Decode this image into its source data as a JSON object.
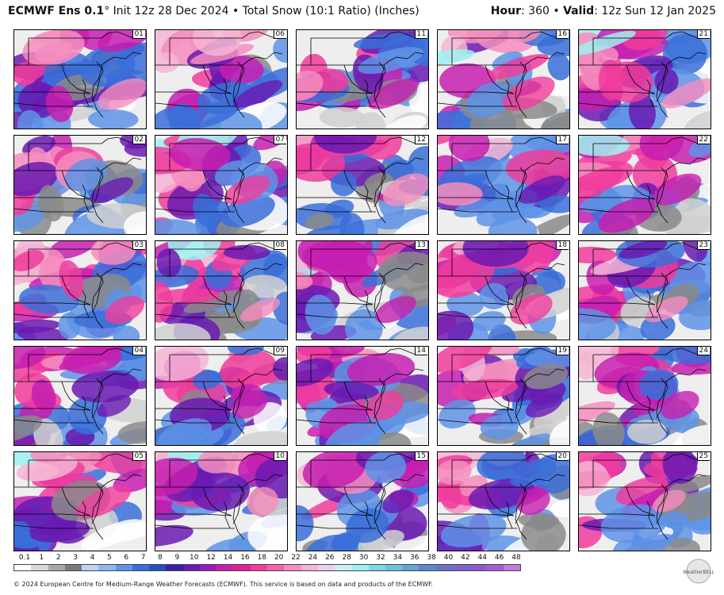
{
  "header": {
    "model": "ECMWF Ens 0.1",
    "degree": "°",
    "description": "Init 12z 28 Dec 2024 • Total Snow (10:1 Ratio) (Inches)",
    "hour_label": "Hour",
    "hour_value": ": 360 •",
    "valid_label": "Valid",
    "valid_value": ": 12z Sun 12 Jan 2025"
  },
  "members": [
    [
      "01",
      "06",
      "11",
      "16",
      "21"
    ],
    [
      "02",
      "07",
      "12",
      "17",
      "22"
    ],
    [
      "03",
      "08",
      "13",
      "18",
      "23"
    ],
    [
      "04",
      "09",
      "14",
      "19",
      "24"
    ],
    [
      "05",
      "10",
      "15",
      "20",
      "25"
    ]
  ],
  "scale": {
    "labels": [
      "0.1",
      "1",
      "2",
      "3",
      "4",
      "5",
      "6",
      "7",
      "8",
      "9",
      "10",
      "12",
      "14",
      "16",
      "18",
      "20",
      "22",
      "24",
      "26",
      "28",
      "30",
      "32",
      "34",
      "36",
      "38",
      "40",
      "42",
      "44",
      "46",
      "48"
    ],
    "colors": [
      "#ffffff",
      "#d8d8d8",
      "#a8a8a8",
      "#7a7a7a",
      "#bcd4f5",
      "#8fb6ef",
      "#5e93e6",
      "#3a6fd8",
      "#2550c0",
      "#3a1fa8",
      "#6a1ab2",
      "#9a1cb8",
      "#c61fb0",
      "#e0209a",
      "#f03c9c",
      "#f561ab",
      "#f58dbe",
      "#f5b5d3",
      "#e8d0f2",
      "#c9f0f5",
      "#9ff0f0",
      "#7ad8e8",
      "#6cc0e0",
      "#60a4d8",
      "#5d88cc",
      "#6a72c8",
      "#7a62c8",
      "#8e58cc",
      "#a45cd4",
      "#c07ae0"
    ]
  },
  "logo": {
    "text": "WeatherBELL"
  },
  "footer": "© 2024 European Centre for Medium-Range Weather Forecasts (ECMWF). This service is based on data and products of the ECMWF."
}
